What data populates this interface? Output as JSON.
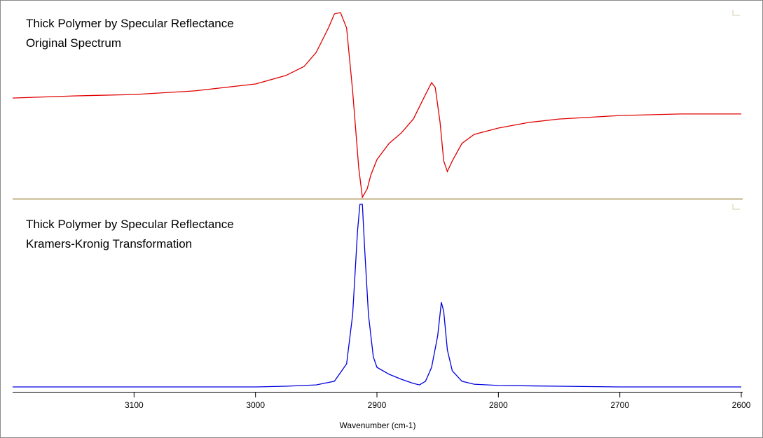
{
  "chart_data": [
    {
      "type": "line",
      "title": "Thick Polymer by Specular Reflectance",
      "subtitle": "Original Spectrum",
      "color": "#e00000",
      "xlim": [
        3200,
        2600
      ],
      "ylim": [
        0,
        100
      ],
      "x": [
        3200,
        3150,
        3100,
        3050,
        3000,
        2975,
        2960,
        2950,
        2940,
        2935,
        2930,
        2925,
        2920,
        2915,
        2912,
        2908,
        2905,
        2900,
        2890,
        2880,
        2870,
        2860,
        2855,
        2852,
        2848,
        2845,
        2842,
        2838,
        2830,
        2820,
        2800,
        2775,
        2750,
        2700,
        2650,
        2600
      ],
      "values": [
        52.7,
        53.8,
        54.5,
        56.4,
        60,
        64.4,
        69.1,
        76.4,
        89.1,
        96.4,
        97.1,
        89.1,
        56.4,
        16.4,
        1.1,
        5.5,
        12.7,
        20.7,
        29.1,
        34.5,
        41.8,
        54.5,
        60.7,
        58.2,
        40,
        20,
        14.5,
        20,
        29.1,
        33.8,
        37.1,
        40,
        41.8,
        43.6,
        44.4,
        44.4
      ]
    },
    {
      "type": "line",
      "title": "Thick Polymer by Specular Reflectance",
      "subtitle": "Kramers-Kronig Transformation",
      "color": "#0000e0",
      "xlim": [
        3200,
        2600
      ],
      "ylim": [
        0,
        100
      ],
      "x": [
        3200,
        3000,
        2975,
        2950,
        2935,
        2925,
        2920,
        2916,
        2914,
        2912,
        2910,
        2907,
        2903,
        2900,
        2890,
        2880,
        2870,
        2865,
        2860,
        2855,
        2850,
        2847,
        2845,
        2842,
        2838,
        2830,
        2820,
        2800,
        2750,
        2700,
        2600
      ],
      "values": [
        0,
        0,
        0.4,
        1.1,
        3.1,
        12.6,
        39.3,
        85.1,
        99.6,
        99.6,
        73.7,
        39.3,
        16.4,
        10.7,
        6.9,
        4.2,
        1.9,
        1.1,
        3.1,
        10.7,
        27.9,
        46.2,
        41.2,
        20.2,
        8.8,
        3.1,
        1.5,
        0.8,
        0.4,
        0,
        0
      ],
      "xticks": [
        3100,
        3000,
        2900,
        2800,
        2700,
        2600
      ],
      "xlabel": "Wavenumber (cm-1)"
    }
  ]
}
